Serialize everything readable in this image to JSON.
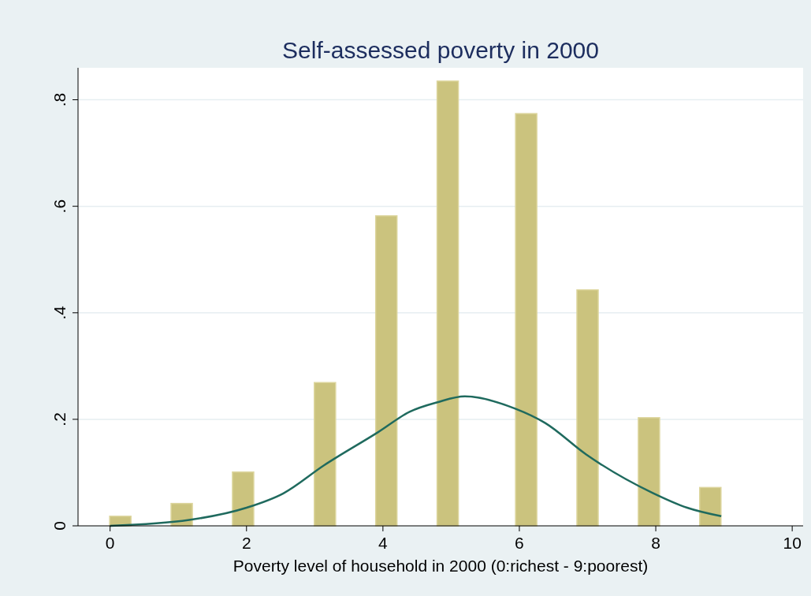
{
  "chart_data": {
    "type": "bar",
    "title": "Self-assessed poverty in 2000",
    "xlabel": "Poverty level of household in 2000 (0:richest - 9:poorest)",
    "x": [
      0.15,
      1.05,
      1.95,
      3.15,
      4.05,
      4.95,
      6.1,
      7.0,
      7.9,
      8.8
    ],
    "series": [
      {
        "color": "#cbc37e",
        "values": [
          0.018,
          0.042,
          0.101,
          0.269,
          0.582,
          0.835,
          0.774,
          0.443,
          0.203,
          0.072
        ]
      },
      {
        "type": "line",
        "color": "#1f6a5e",
        "x": [
          0,
          1.16,
          2,
          2.54,
          3.14,
          3.93,
          4.39,
          4.8,
          5.2,
          5.94,
          6.38,
          6.98,
          7.95,
          8.46,
          8.96
        ],
        "values": [
          0,
          0.011,
          0.034,
          0.061,
          0.114,
          0.176,
          0.214,
          0.232,
          0.243,
          0.22,
          0.193,
          0.134,
          0.062,
          0.034,
          0.018
        ]
      }
    ],
    "xlim": [
      -0.47,
      10.16
    ],
    "xticks": [
      0,
      2,
      4,
      6,
      8,
      10
    ],
    "ylim": [
      0,
      0.86
    ],
    "yticks": [
      {
        "value": 0,
        "label": "0"
      },
      {
        "value": 0.2,
        "label": ".2"
      },
      {
        "value": 0.4,
        "label": ".4"
      },
      {
        "value": 0.6,
        "label": ".6"
      },
      {
        "value": 0.8,
        "label": ".8"
      }
    ],
    "grid": "y",
    "line_style": "solid",
    "marker": "none"
  }
}
